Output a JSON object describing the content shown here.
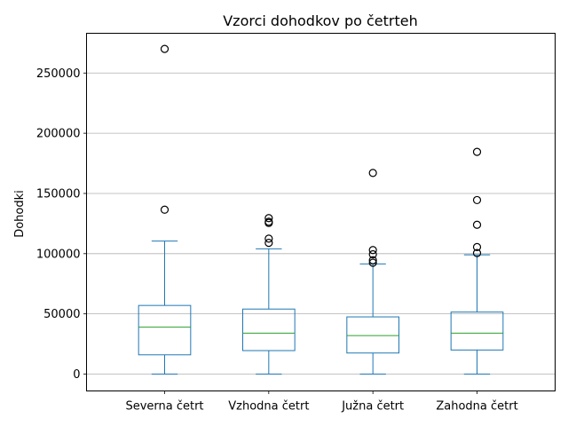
{
  "chart_data": {
    "type": "box",
    "title": "Vzorci dohodkov po četrteh",
    "xlabel": "",
    "ylabel": "Dohodki",
    "ylim": [
      -14000,
      283000
    ],
    "yticks": [
      0,
      50000,
      100000,
      150000,
      200000,
      250000
    ],
    "ytick_labels": [
      "0",
      "50000",
      "100000",
      "150000",
      "200000",
      "250000"
    ],
    "grid": "horizontal",
    "legend": "none",
    "colors": {
      "box": "#1f77b4",
      "median": "#2ca02c",
      "grid": "#b0b0b0",
      "flier": "#000000"
    },
    "categories": [
      "Severna četrt",
      "Vzhodna četrt",
      "Južna četrt",
      "Zahodna četrt"
    ],
    "boxes": [
      {
        "category": "Severna četrt",
        "whisker_low": 0,
        "q1": 16000,
        "median": 39000,
        "q3": 57000,
        "whisker_high": 110500,
        "outliers": [
          136500,
          270000
        ]
      },
      {
        "category": "Vzhodna četrt",
        "whisker_low": 0,
        "q1": 19500,
        "median": 34000,
        "q3": 54000,
        "whisker_high": 104000,
        "outliers": [
          109000,
          112500,
          125500,
          126500,
          129500
        ]
      },
      {
        "category": "Južna četrt",
        "whisker_low": 0,
        "q1": 17500,
        "median": 32000,
        "q3": 47500,
        "whisker_high": 91500,
        "outliers": [
          92500,
          94500,
          99500,
          103000,
          167000
        ]
      },
      {
        "category": "Zahodna četrt",
        "whisker_low": 0,
        "q1": 20000,
        "median": 34000,
        "q3": 51500,
        "whisker_high": 99000,
        "outliers": [
          100500,
          105500,
          124000,
          144500,
          184500
        ]
      }
    ]
  }
}
